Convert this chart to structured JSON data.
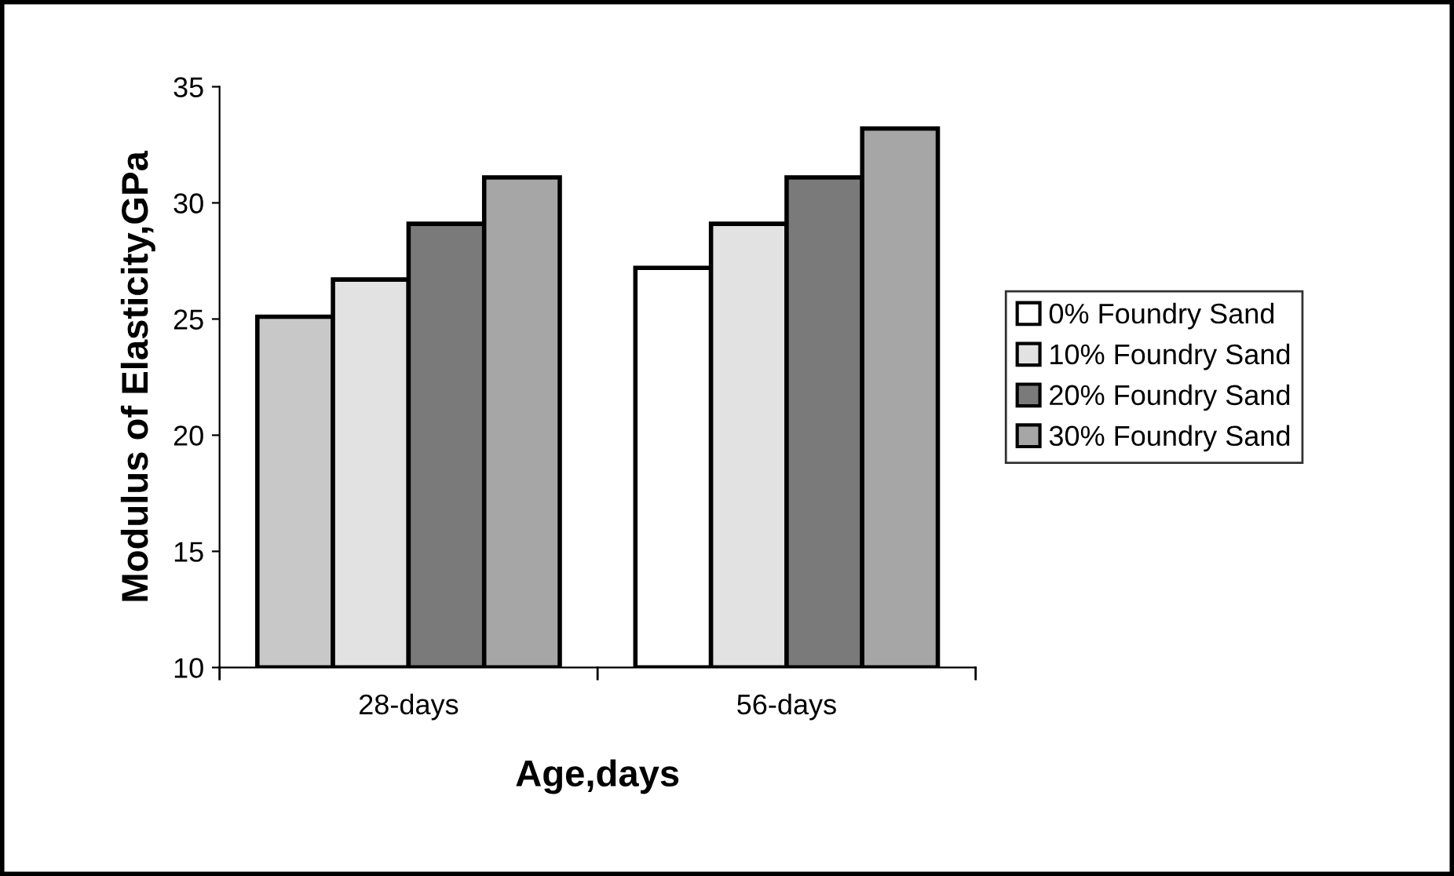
{
  "chart_data": {
    "type": "bar",
    "xlabel": "Age,days",
    "ylabel": "Modulus of Elasticity,GPa",
    "categories": [
      "28-days",
      "56-days"
    ],
    "series": [
      {
        "name": "0% Foundry Sand",
        "color": "#ffffff",
        "colors": [
          "#c8c8c8",
          "#ffffff"
        ],
        "values": [
          25.1,
          27.2
        ]
      },
      {
        "name": "10% Foundry Sand",
        "color": "#e2e2e2",
        "values": [
          26.7,
          29.1
        ]
      },
      {
        "name": "20% Foundry Sand",
        "color": "#7a7a7a",
        "values": [
          29.1,
          31.1
        ]
      },
      {
        "name": "30% Foundry Sand",
        "color": "#a6a6a6",
        "values": [
          31.1,
          33.2
        ]
      }
    ],
    "ylim": [
      10,
      35
    ],
    "yticks": [
      10,
      15,
      20,
      25,
      30,
      35
    ],
    "grid": false,
    "legend": "right"
  }
}
